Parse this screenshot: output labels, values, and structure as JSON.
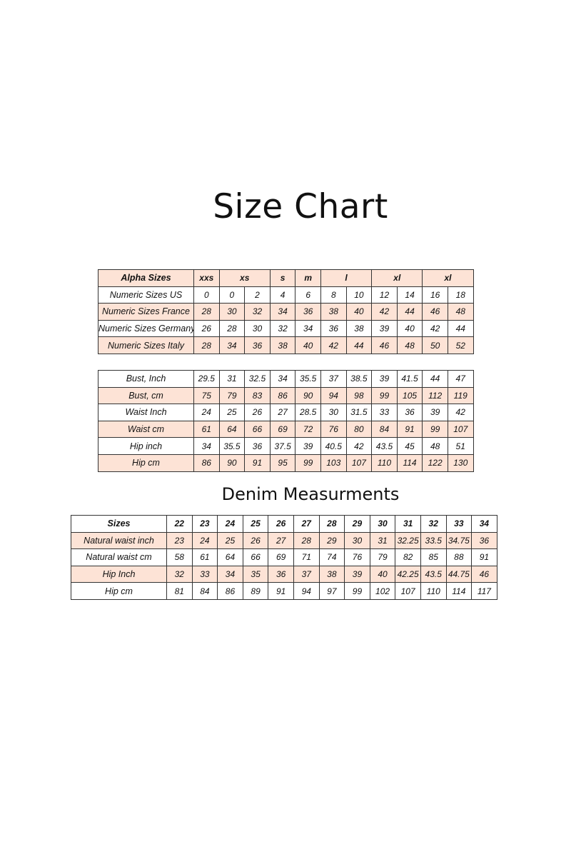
{
  "title": "Size Chart",
  "denim_title": "Denim Measurments",
  "colors": {
    "shade": "#fde3d6",
    "border": "#333333"
  },
  "sizes_table": {
    "header": {
      "label": "Alpha Sizes",
      "cells": [
        {
          "label": "xxs",
          "span": 1
        },
        {
          "label": "xs",
          "span": 2
        },
        {
          "label": "s",
          "span": 1
        },
        {
          "label": "m",
          "span": 1
        },
        {
          "label": "l",
          "span": 2
        },
        {
          "label": "xl",
          "span": 2
        },
        {
          "label": "xl",
          "span": 2
        }
      ]
    },
    "rows": [
      {
        "label": "Numeric Sizes US",
        "values": [
          "0",
          "0",
          "2",
          "4",
          "6",
          "8",
          "10",
          "12",
          "14",
          "16",
          "18"
        ]
      },
      {
        "label": "Numeric Sizes France",
        "values": [
          "28",
          "30",
          "32",
          "34",
          "36",
          "38",
          "40",
          "42",
          "44",
          "46",
          "48"
        ]
      },
      {
        "label": "Numeric Sizes Germany",
        "values": [
          "26",
          "28",
          "30",
          "32",
          "34",
          "36",
          "38",
          "39",
          "40",
          "42",
          "44"
        ]
      },
      {
        "label": "Numeric Sizes Italy",
        "values": [
          "28",
          "34",
          "36",
          "38",
          "40",
          "42",
          "44",
          "46",
          "48",
          "50",
          "52"
        ]
      }
    ]
  },
  "measurements_table": {
    "rows": [
      {
        "label": "Bust, Inch",
        "values": [
          "29.5",
          "31",
          "32.5",
          "34",
          "35.5",
          "37",
          "38.5",
          "39",
          "41.5",
          "44",
          "47"
        ]
      },
      {
        "label": "Bust, cm",
        "values": [
          "75",
          "79",
          "83",
          "86",
          "90",
          "94",
          "98",
          "99",
          "105",
          "112",
          "119"
        ]
      },
      {
        "label": "Waist Inch",
        "values": [
          "24",
          "25",
          "26",
          "27",
          "28.5",
          "30",
          "31.5",
          "33",
          "36",
          "39",
          "42"
        ]
      },
      {
        "label": "Waist cm",
        "values": [
          "61",
          "64",
          "66",
          "69",
          "72",
          "76",
          "80",
          "84",
          "91",
          "99",
          "107"
        ]
      },
      {
        "label": "Hip inch",
        "values": [
          "34",
          "35.5",
          "36",
          "37.5",
          "39",
          "40.5",
          "42",
          "43.5",
          "45",
          "48",
          "51"
        ]
      },
      {
        "label": "Hip cm",
        "values": [
          "86",
          "90",
          "91",
          "95",
          "99",
          "103",
          "107",
          "110",
          "114",
          "122",
          "130"
        ]
      }
    ]
  },
  "denim_table": {
    "header": {
      "label": "Sizes",
      "values": [
        "22",
        "23",
        "24",
        "25",
        "26",
        "27",
        "28",
        "29",
        "30",
        "31",
        "32",
        "33",
        "34"
      ]
    },
    "rows": [
      {
        "label": "Natural waist inch",
        "values": [
          "23",
          "24",
          "25",
          "26",
          "27",
          "28",
          "29",
          "30",
          "31",
          "32.25",
          "33.5",
          "34.75",
          "36"
        ]
      },
      {
        "label": "Natural waist cm",
        "values": [
          "58",
          "61",
          "64",
          "66",
          "69",
          "71",
          "74",
          "76",
          "79",
          "82",
          "85",
          "88",
          "91"
        ]
      },
      {
        "label": "Hip Inch",
        "values": [
          "32",
          "33",
          "34",
          "35",
          "36",
          "37",
          "38",
          "39",
          "40",
          "42.25",
          "43.5",
          "44.75",
          "46"
        ]
      },
      {
        "label": "Hip cm",
        "values": [
          "81",
          "84",
          "86",
          "89",
          "91",
          "94",
          "97",
          "99",
          "102",
          "107",
          "110",
          "114",
          "117"
        ]
      }
    ]
  }
}
